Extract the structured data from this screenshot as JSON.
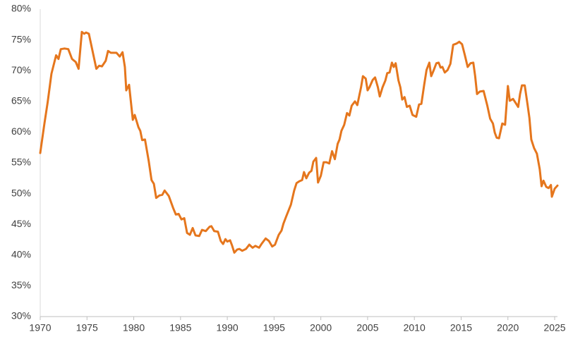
{
  "chart_data": {
    "type": "line",
    "color": "#e5761d",
    "x": [
      1970.0,
      1970.45,
      1970.8,
      1971.2,
      1971.7,
      1971.95,
      1972.2,
      1972.6,
      1973.0,
      1973.4,
      1973.8,
      1974.1,
      1974.45,
      1974.7,
      1974.9,
      1975.2,
      1976.0,
      1976.3,
      1976.6,
      1977.0,
      1977.25,
      1977.55,
      1978.15,
      1978.5,
      1978.8,
      1979.05,
      1979.2,
      1979.5,
      1979.9,
      1980.1,
      1980.5,
      1980.7,
      1980.9,
      1981.2,
      1981.6,
      1981.9,
      1982.15,
      1982.4,
      1982.75,
      1983.05,
      1983.3,
      1983.75,
      1984.2,
      1984.5,
      1984.8,
      1985.1,
      1985.4,
      1985.7,
      1986.0,
      1986.3,
      1986.6,
      1987.0,
      1987.3,
      1987.7,
      1988.1,
      1988.3,
      1988.6,
      1989.0,
      1989.3,
      1989.55,
      1989.8,
      1990.0,
      1990.3,
      1990.5,
      1990.75,
      1991.05,
      1991.3,
      1991.6,
      1992.0,
      1992.35,
      1992.7,
      1993.0,
      1993.4,
      1993.7,
      1994.1,
      1994.45,
      1994.8,
      1995.1,
      1995.5,
      1995.8,
      1996.0,
      1996.3,
      1996.8,
      1997.15,
      1997.4,
      1997.7,
      1998.0,
      1998.2,
      1998.45,
      1998.75,
      1999.0,
      1999.2,
      1999.5,
      1999.7,
      2000.0,
      2000.3,
      2000.6,
      2000.9,
      2001.2,
      2001.5,
      2001.8,
      2002.0,
      2002.2,
      2002.5,
      2002.8,
      2003.05,
      2003.3,
      2003.65,
      2003.9,
      2004.3,
      2004.5,
      2004.8,
      2005.0,
      2005.2,
      2005.55,
      2005.8,
      2006.1,
      2006.3,
      2006.6,
      2006.9,
      2007.1,
      2007.35,
      2007.6,
      2007.8,
      2008.0,
      2008.3,
      2008.5,
      2008.7,
      2008.95,
      2009.2,
      2009.5,
      2009.8,
      2010.2,
      2010.5,
      2010.75,
      2011.05,
      2011.3,
      2011.6,
      2011.8,
      2012.05,
      2012.35,
      2012.6,
      2012.8,
      2013.0,
      2013.25,
      2013.55,
      2013.85,
      2014.15,
      2014.5,
      2014.8,
      2015.1,
      2015.4,
      2015.7,
      2016.0,
      2016.3,
      2016.5,
      2016.7,
      2017.0,
      2017.4,
      2017.8,
      2018.1,
      2018.4,
      2018.6,
      2018.8,
      2019.05,
      2019.4,
      2019.7,
      2020.0,
      2020.2,
      2020.55,
      2020.85,
      2021.1,
      2021.3,
      2021.5,
      2021.8,
      2022.1,
      2022.3,
      2022.5,
      2022.8,
      2023.1,
      2023.4,
      2023.6,
      2023.8,
      2024.1,
      2024.35,
      2024.6,
      2024.7,
      2025.0,
      2025.3
    ],
    "values": [
      56.6,
      61.4,
      64.9,
      69.5,
      72.5,
      71.9,
      73.5,
      73.6,
      73.5,
      71.9,
      71.4,
      70.3,
      76.3,
      76.0,
      76.2,
      76.0,
      70.3,
      70.8,
      70.7,
      71.6,
      73.2,
      72.9,
      72.9,
      72.3,
      73.0,
      70.6,
      66.8,
      67.7,
      62.0,
      62.8,
      60.8,
      60.2,
      58.7,
      58.8,
      55.3,
      52.2,
      51.6,
      49.3,
      49.7,
      49.8,
      50.5,
      49.6,
      47.7,
      46.6,
      46.7,
      45.8,
      46.0,
      43.6,
      43.3,
      44.4,
      43.2,
      43.1,
      44.1,
      43.9,
      44.6,
      44.7,
      43.9,
      43.8,
      42.3,
      41.8,
      42.6,
      42.2,
      42.4,
      41.6,
      40.4,
      40.9,
      41.0,
      40.7,
      41.0,
      41.7,
      41.2,
      41.5,
      41.2,
      41.9,
      42.7,
      42.3,
      41.4,
      41.7,
      43.3,
      44.0,
      45.1,
      46.3,
      48.2,
      50.5,
      51.7,
      52.0,
      52.2,
      53.5,
      52.5,
      53.4,
      53.7,
      55.2,
      55.8,
      51.8,
      52.9,
      55.1,
      55.1,
      54.9,
      56.9,
      55.6,
      58.1,
      58.8,
      60.2,
      61.2,
      63.1,
      62.7,
      64.3,
      65.0,
      64.4,
      67.3,
      69.1,
      68.7,
      66.8,
      67.3,
      68.5,
      68.9,
      67.3,
      65.8,
      67.3,
      68.4,
      69.6,
      69.7,
      71.3,
      70.6,
      71.2,
      68.4,
      67.3,
      65.3,
      65.7,
      64.1,
      64.3,
      62.8,
      62.5,
      64.5,
      64.6,
      67.7,
      70.1,
      71.3,
      69.1,
      70.0,
      71.2,
      71.3,
      70.5,
      70.6,
      69.7,
      70.1,
      71.1,
      74.2,
      74.4,
      74.7,
      74.3,
      72.5,
      70.6,
      71.2,
      71.3,
      69.1,
      66.2,
      66.6,
      66.7,
      64.3,
      62.2,
      61.4,
      59.9,
      59.1,
      59.0,
      61.4,
      61.2,
      67.5,
      65.1,
      65.4,
      64.7,
      64.1,
      66.2,
      67.6,
      67.6,
      64.5,
      62.3,
      58.8,
      57.4,
      56.5,
      54.0,
      51.2,
      52.1,
      51.1,
      50.9,
      51.4,
      49.5,
      50.8,
      51.3
    ],
    "xlim": [
      1970,
      2025.3
    ],
    "xticks": [
      1970,
      1975,
      1980,
      1985,
      1990,
      1995,
      2000,
      2005,
      2010,
      2015,
      2020,
      2025
    ],
    "ylim": [
      30,
      80
    ],
    "yticks": [
      {
        "value": 30,
        "label": "30%"
      },
      {
        "value": 35,
        "label": "35%"
      },
      {
        "value": 40,
        "label": "40%"
      },
      {
        "value": 45,
        "label": "45%"
      },
      {
        "value": 50,
        "label": "50%"
      },
      {
        "value": 55,
        "label": "55%"
      },
      {
        "value": 60,
        "label": "60%"
      },
      {
        "value": 65,
        "label": "65%"
      },
      {
        "value": 70,
        "label": "70%"
      },
      {
        "value": 75,
        "label": "75%"
      },
      {
        "value": 80,
        "label": "80%"
      }
    ],
    "grid": false
  }
}
